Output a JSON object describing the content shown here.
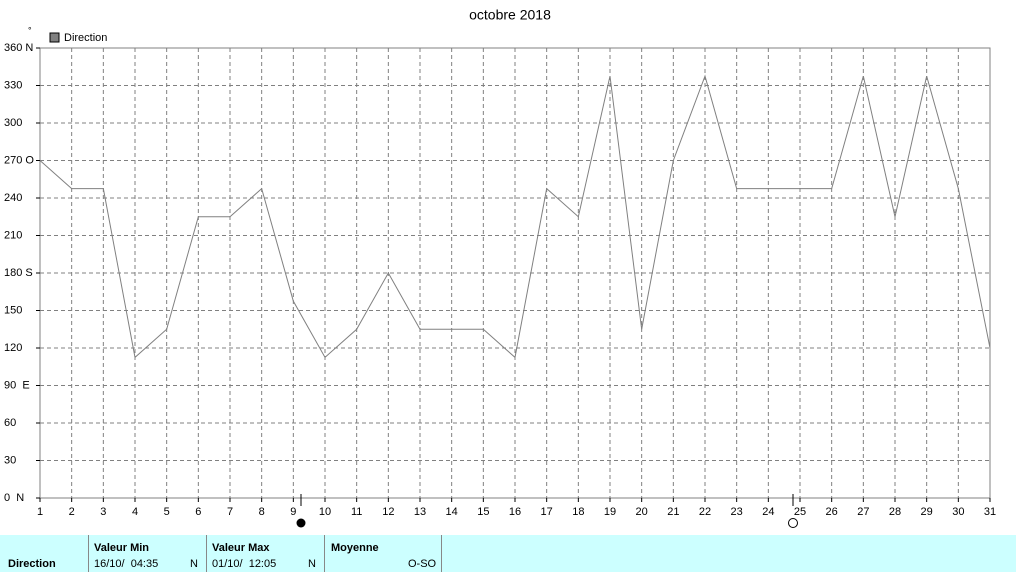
{
  "chart_data": {
    "type": "line",
    "title": "octobre 2018",
    "y_unit": "°",
    "x": [
      1,
      2,
      3,
      4,
      5,
      6,
      7,
      8,
      9,
      10,
      11,
      12,
      13,
      14,
      15,
      16,
      17,
      18,
      19,
      20,
      21,
      22,
      23,
      24,
      25,
      26,
      27,
      28,
      29,
      30,
      31
    ],
    "series": [
      {
        "name": "Direction",
        "color": "#808080",
        "values": [
          270,
          247.5,
          247.5,
          112.5,
          135,
          225,
          225,
          247.5,
          157.5,
          112.5,
          135,
          180,
          135,
          135,
          135,
          112.5,
          247.5,
          225,
          337.5,
          135,
          270,
          337.5,
          247.5,
          247.5,
          247.5,
          247.5,
          337.5,
          225,
          337.5,
          247.5,
          120
        ]
      }
    ],
    "xlim": [
      1,
      31
    ],
    "xticks": [
      1,
      2,
      3,
      4,
      5,
      6,
      7,
      8,
      9,
      10,
      11,
      12,
      13,
      14,
      15,
      16,
      17,
      18,
      19,
      20,
      21,
      22,
      23,
      24,
      25,
      26,
      27,
      28,
      29,
      30,
      31
    ],
    "ylim": [
      0,
      360
    ],
    "yticks": [
      {
        "value": 0,
        "label": "0  N"
      },
      30,
      60,
      {
        "value": 90,
        "label": "90  E"
      },
      120,
      150,
      {
        "value": 180,
        "label": "180 S"
      },
      210,
      240,
      {
        "value": 270,
        "label": "270 O"
      },
      300,
      330,
      {
        "value": 360,
        "label": "360 N"
      }
    ],
    "grid": true
  },
  "summary": {
    "label": "Direction",
    "min": {
      "header": "Valeur Min",
      "date": "16/10/  04:35",
      "direction": "N"
    },
    "max": {
      "header": "Valeur Max",
      "date": "01/10/  12:05",
      "direction": "N"
    },
    "mean": {
      "header": "Moyenne",
      "value": "O-SO"
    }
  }
}
